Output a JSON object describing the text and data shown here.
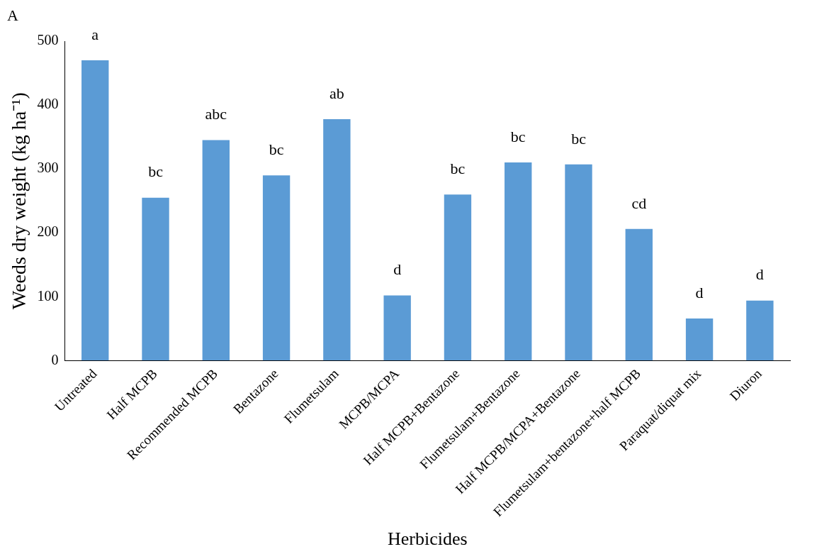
{
  "chart_data": {
    "type": "bar",
    "xlabel": "Herbicides",
    "ylabel": "Weeds dry weight (kg ha⁻¹)",
    "categories": [
      "Untreated",
      "Half MCPB",
      "Recommended MCPB",
      "Bentazone",
      "Flumetsulam",
      "MCPB/MCPA",
      "Half MCPB+Bentazone",
      "Flumetsulam+Bentazone",
      "Half MCPB/MCPA+Bentazone",
      "Flumetsulam+bentazone+half MCPB",
      "Paraquat/diquat mix",
      "Diuron"
    ],
    "values": [
      470,
      255,
      345,
      290,
      378,
      102,
      260,
      310,
      307,
      206,
      66,
      94
    ],
    "value_labels": [
      "a",
      "bc",
      "abc",
      "bc",
      "ab",
      "d",
      "bc",
      "bc",
      "bc",
      "cd",
      "d",
      "d"
    ],
    "color": "#5b9bd5",
    "ylim": [
      0,
      500
    ],
    "yticks": [
      0,
      100,
      200,
      300,
      400,
      500
    ],
    "grid": false,
    "legend": false,
    "annotations": [
      "A"
    ]
  }
}
